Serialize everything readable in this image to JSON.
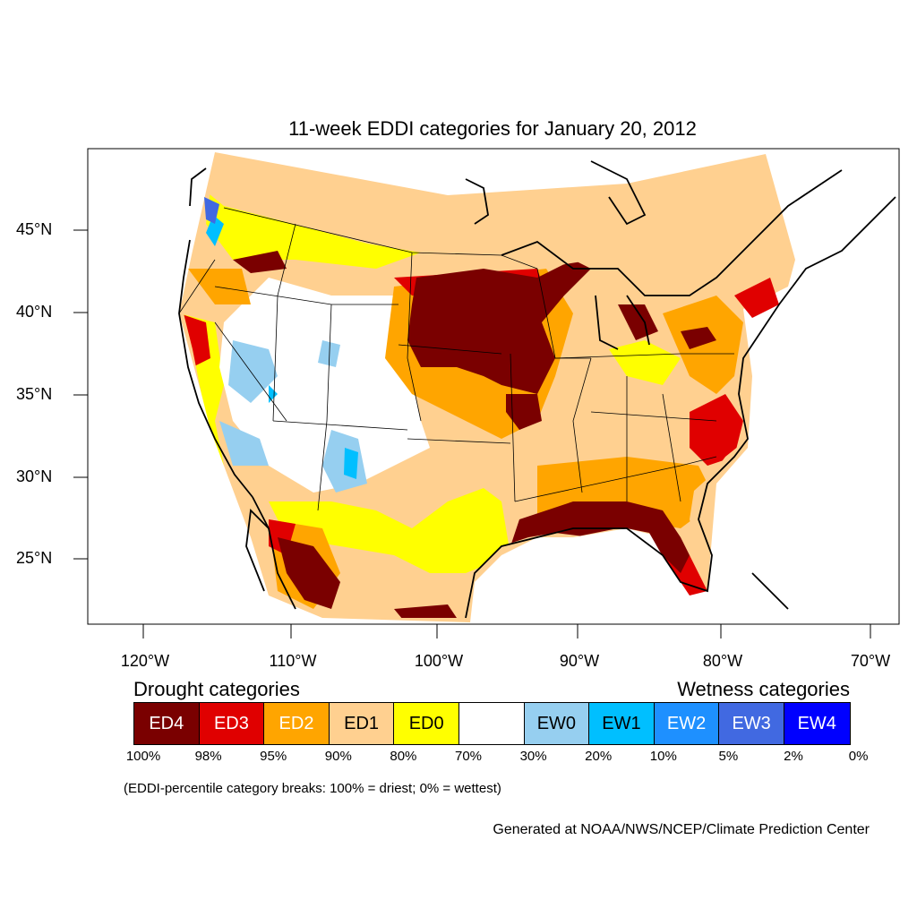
{
  "title": "11-week EDDI categories for January 20, 2012",
  "lat_labels": [
    "45°N",
    "40°N",
    "35°N",
    "30°N",
    "25°N"
  ],
  "lon_labels": [
    "120°W",
    "110°W",
    "100°W",
    "90°W",
    "80°W",
    "70°W"
  ],
  "legend": {
    "drought_title": "Drought categories",
    "wetness_title": "Wetness categories",
    "categories": [
      {
        "label": "ED4",
        "color": "#7a0000",
        "text_color": "#ffffff"
      },
      {
        "label": "ED3",
        "color": "#e00000",
        "text_color": "#ffffff"
      },
      {
        "label": "ED2",
        "color": "#ffa500",
        "text_color": "#ffffff"
      },
      {
        "label": "ED1",
        "color": "#ffd090",
        "text_color": "#000000"
      },
      {
        "label": "ED0",
        "color": "#ffff00",
        "text_color": "#000000"
      },
      {
        "label": "",
        "color": "#ffffff",
        "text_color": "#000000"
      },
      {
        "label": "EW0",
        "color": "#96cff0",
        "text_color": "#000000"
      },
      {
        "label": "EW1",
        "color": "#00bfff",
        "text_color": "#000000"
      },
      {
        "label": "EW2",
        "color": "#1e90ff",
        "text_color": "#ffffff"
      },
      {
        "label": "EW3",
        "color": "#4169e1",
        "text_color": "#ffffff"
      },
      {
        "label": "EW4",
        "color": "#0000ff",
        "text_color": "#ffffff"
      }
    ],
    "percentiles": [
      "100%",
      "98%",
      "95%",
      "90%",
      "80%",
      "70%",
      "30%",
      "20%",
      "10%",
      "5%",
      "2%",
      "0%"
    ]
  },
  "note": "(EDDI-percentile category breaks: 100% = driest; 0% = wettest)",
  "credit": "Generated at NOAA/NWS/NCEP/Climate Prediction Center"
}
